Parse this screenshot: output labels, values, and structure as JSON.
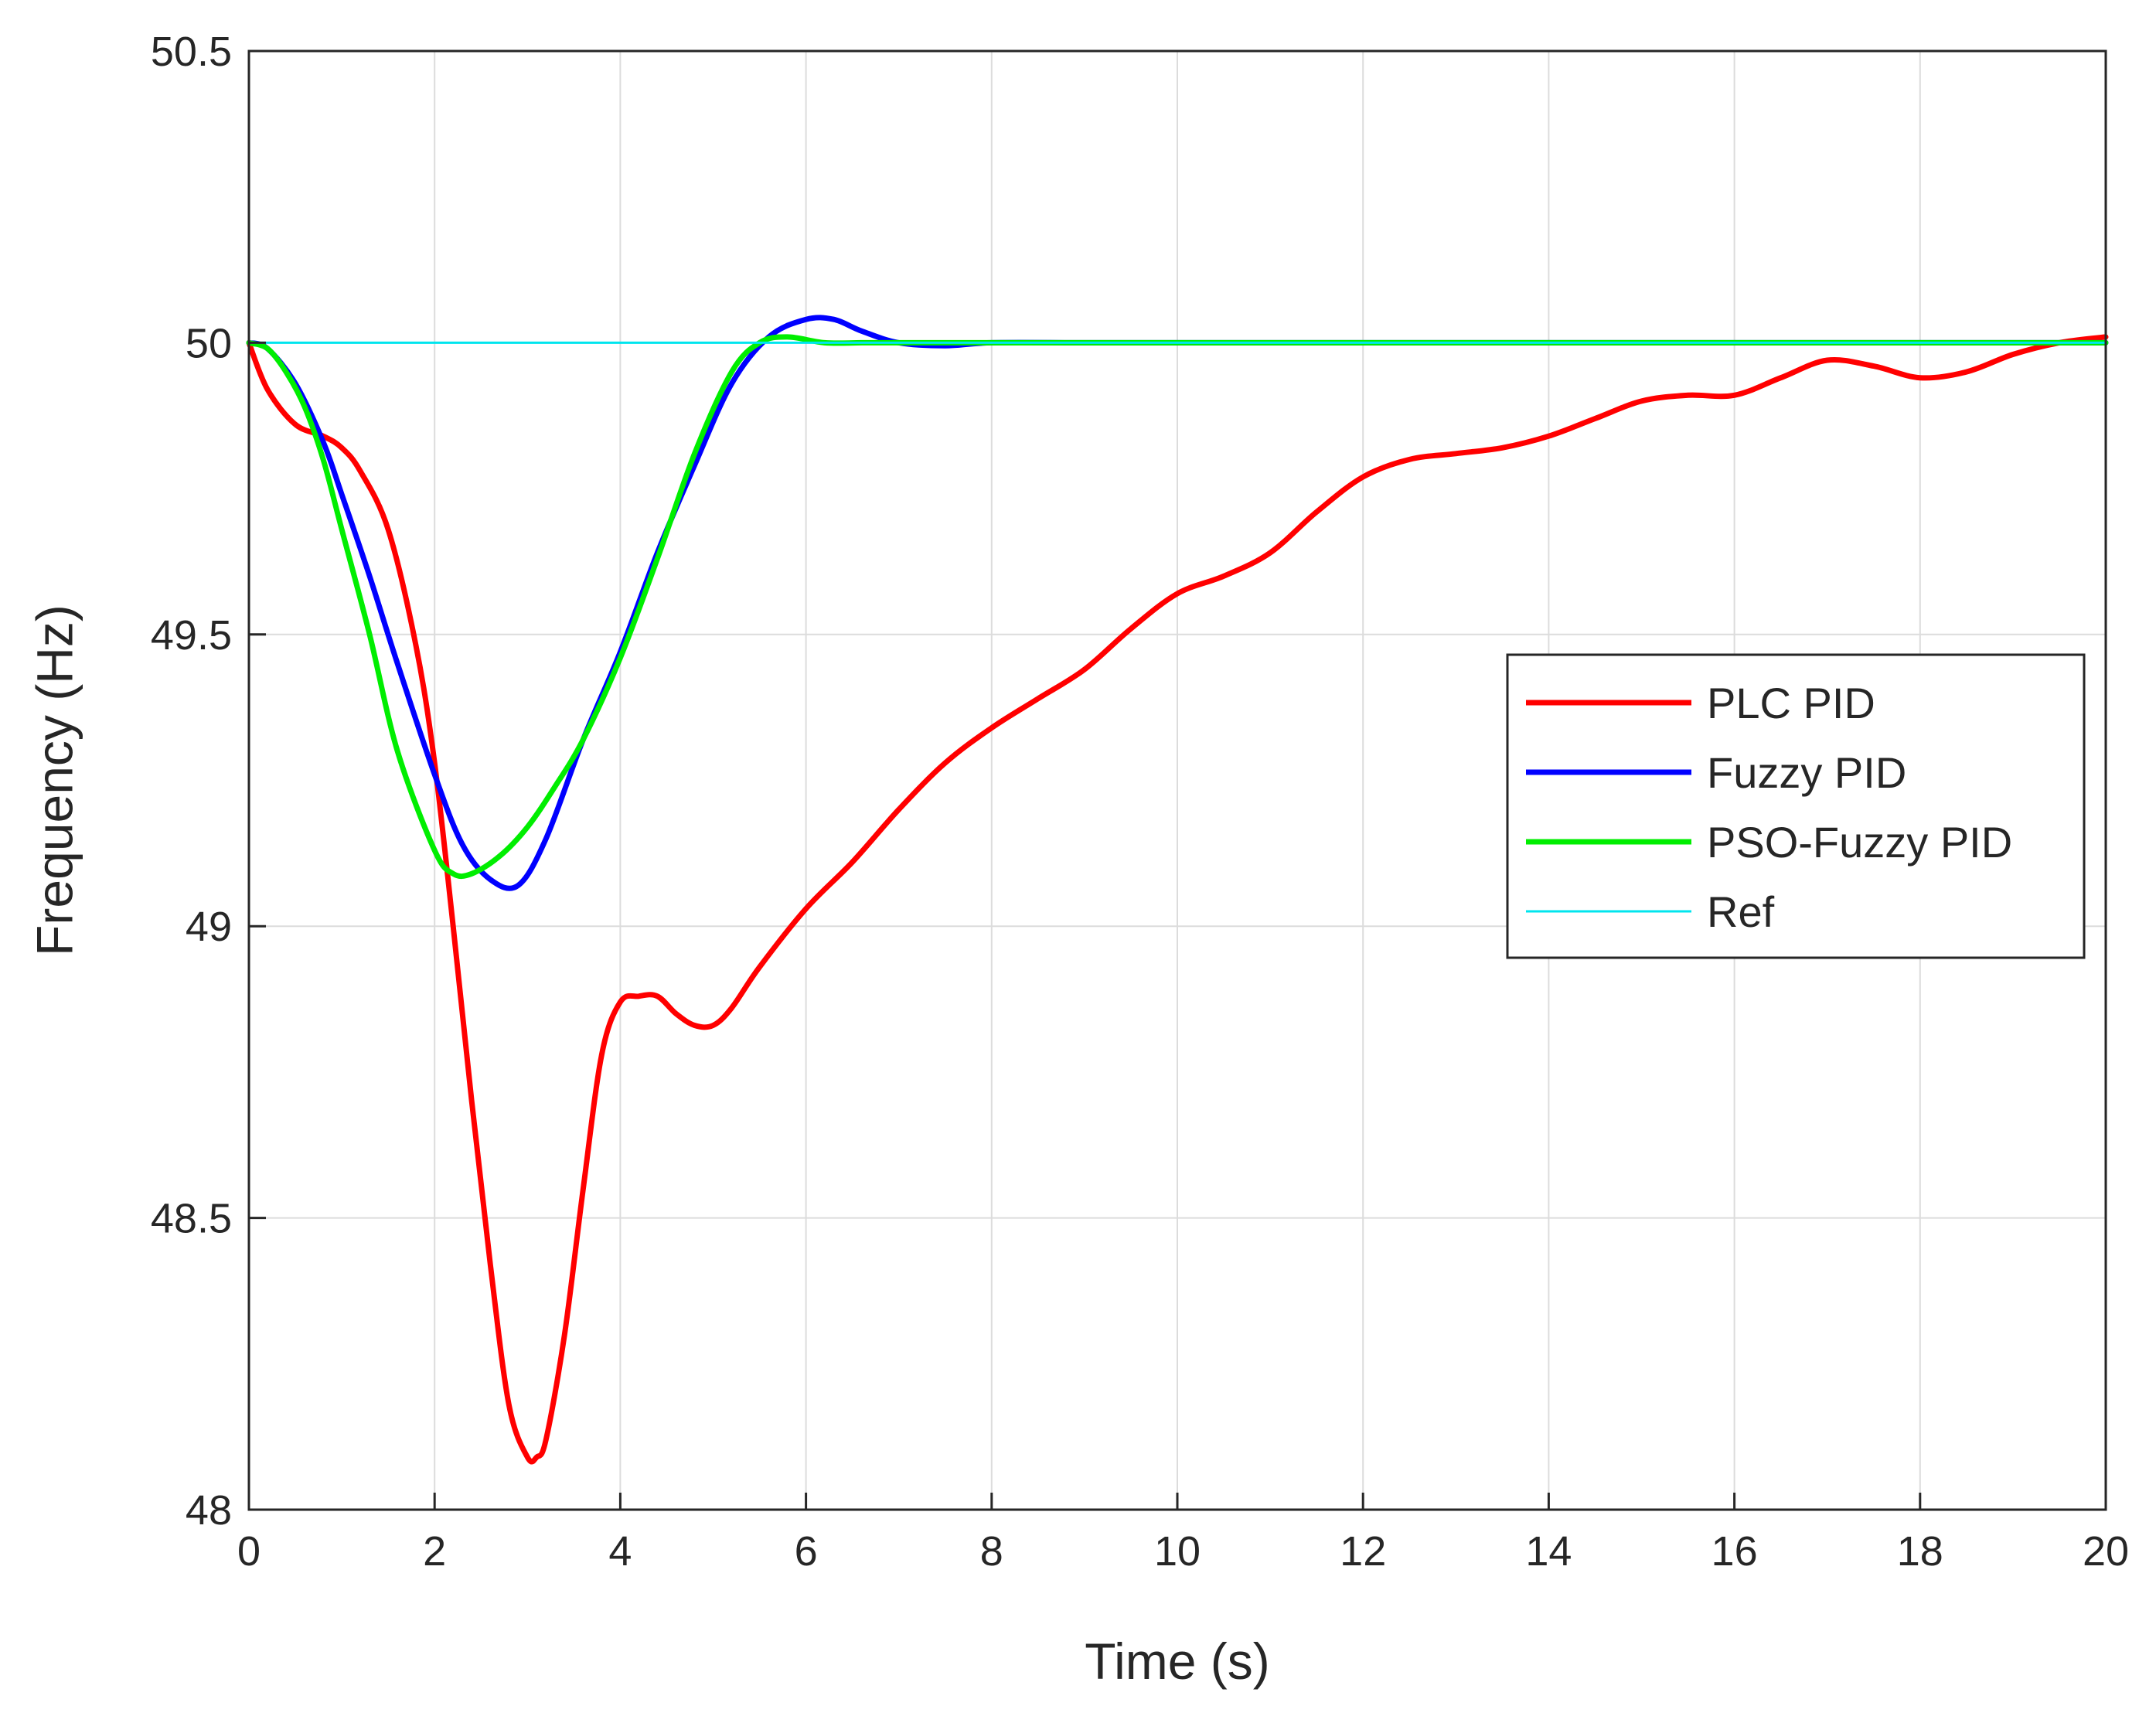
{
  "chart_data": {
    "type": "line",
    "title": "",
    "xlabel": "Time (s)",
    "ylabel": "Frequency (Hz)",
    "xlim": [
      0,
      20
    ],
    "ylim": [
      48,
      50.5
    ],
    "xticks": [
      0,
      2,
      4,
      6,
      8,
      10,
      12,
      14,
      16,
      18,
      20
    ],
    "xtick_labels": [
      "0",
      "2",
      "4",
      "6",
      "8",
      "10",
      "12",
      "14",
      "16",
      "18",
      "20"
    ],
    "yticks": [
      48,
      48.5,
      49,
      49.5,
      50,
      50.5
    ],
    "ytick_labels": [
      "48",
      "48.5",
      "49",
      "49.5",
      "50",
      "50.5"
    ],
    "grid": true,
    "legend_position": "right-middle",
    "series": [
      {
        "name": "PLC PID",
        "color": "#ff0000",
        "line_weight": "thick",
        "x": [
          0,
          0.2,
          0.5,
          0.8,
          1.0,
          1.2,
          1.5,
          1.8,
          2.0,
          2.2,
          2.4,
          2.6,
          2.8,
          3.0,
          3.1,
          3.2,
          3.4,
          3.6,
          3.8,
          4.0,
          4.2,
          4.4,
          4.6,
          4.8,
          5.0,
          5.2,
          5.5,
          6.0,
          6.5,
          7.0,
          7.5,
          8.0,
          8.5,
          9.0,
          9.5,
          10.0,
          10.5,
          11.0,
          11.5,
          12.0,
          12.5,
          13.0,
          13.5,
          14.0,
          14.5,
          15.0,
          15.5,
          16.0,
          16.5,
          17.0,
          17.5,
          18.0,
          18.5,
          19.0,
          19.5,
          20.0
        ],
        "y": [
          50.0,
          49.92,
          49.86,
          49.84,
          49.82,
          49.78,
          49.68,
          49.48,
          49.28,
          49.0,
          48.7,
          48.42,
          48.18,
          48.09,
          48.09,
          48.12,
          48.3,
          48.55,
          48.78,
          48.87,
          48.88,
          48.88,
          48.85,
          48.83,
          48.83,
          48.86,
          48.93,
          49.03,
          49.11,
          49.2,
          49.28,
          49.34,
          49.39,
          49.44,
          49.51,
          49.57,
          49.6,
          49.64,
          49.71,
          49.77,
          49.8,
          49.81,
          49.82,
          49.84,
          49.87,
          49.9,
          49.91,
          49.91,
          49.94,
          49.97,
          49.96,
          49.94,
          49.95,
          49.98,
          50.0,
          50.01
        ]
      },
      {
        "name": "Fuzzy PID",
        "color": "#0000ff",
        "line_weight": "thick",
        "x": [
          0,
          0.2,
          0.5,
          0.8,
          1.0,
          1.3,
          1.6,
          2.0,
          2.3,
          2.6,
          2.9,
          3.2,
          3.6,
          4.0,
          4.4,
          4.8,
          5.2,
          5.6,
          6.0,
          6.3,
          6.6,
          7.0,
          7.5,
          8.0,
          9.0,
          10.0,
          12.0,
          15.0,
          18.0,
          20.0
        ],
        "y": [
          50.0,
          49.99,
          49.93,
          49.83,
          49.74,
          49.6,
          49.45,
          49.26,
          49.14,
          49.08,
          49.07,
          49.15,
          49.32,
          49.47,
          49.64,
          49.79,
          49.93,
          50.01,
          50.04,
          50.04,
          50.02,
          50.0,
          49.995,
          50.0,
          50.0,
          50.0,
          50.0,
          50.0,
          50.0,
          50.0
        ]
      },
      {
        "name": "PSO-Fuzzy PID",
        "color": "#00ee00",
        "line_weight": "thick",
        "x": [
          0,
          0.2,
          0.4,
          0.6,
          0.8,
          1.0,
          1.3,
          1.6,
          2.0,
          2.2,
          2.4,
          2.7,
          3.0,
          3.3,
          3.6,
          4.0,
          4.4,
          4.8,
          5.2,
          5.5,
          5.8,
          6.2,
          6.6,
          7.0,
          8.0,
          10.0,
          12.0,
          15.0,
          18.0,
          20.0
        ],
        "y": [
          50.0,
          49.99,
          49.95,
          49.89,
          49.8,
          49.68,
          49.5,
          49.3,
          49.13,
          49.09,
          49.09,
          49.12,
          49.17,
          49.24,
          49.32,
          49.46,
          49.63,
          49.81,
          49.95,
          50.0,
          50.01,
          50.0,
          50.0,
          50.0,
          50.0,
          50.0,
          50.0,
          50.0,
          50.0,
          50.0
        ]
      },
      {
        "name": "Ref",
        "color": "#00e5ee",
        "line_weight": "thin",
        "x": [
          0,
          20
        ],
        "y": [
          50.0,
          50.0
        ]
      }
    ]
  }
}
